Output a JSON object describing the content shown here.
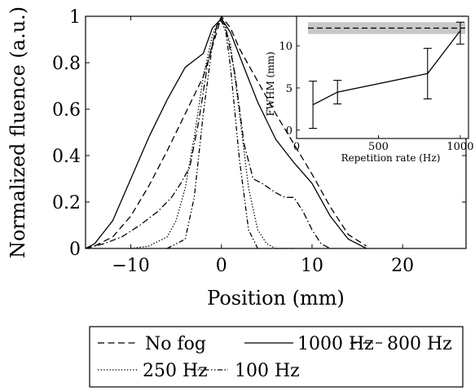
{
  "chart_data": [
    {
      "type": "line",
      "xlabel": "Position (mm)",
      "ylabel": "Normalized fluence (a.u.)",
      "xlim": [
        -15,
        27
      ],
      "ylim": [
        0,
        1
      ],
      "xticks": [
        "−10",
        "0",
        "10",
        "20"
      ],
      "yticks": [
        "0",
        "0.2",
        "0.4",
        "0.6",
        "0.8",
        "1"
      ],
      "grid": false,
      "legend": "below",
      "series": [
        {
          "name": "No fog",
          "style": "dashed",
          "x": [
            -14,
            -12,
            -10,
            -8,
            -6,
            -4,
            -2,
            -1,
            0,
            1,
            2,
            4,
            6,
            8,
            10,
            12,
            14,
            16
          ],
          "y": [
            0.01,
            0.05,
            0.14,
            0.27,
            0.42,
            0.58,
            0.74,
            0.87,
            1.0,
            0.95,
            0.86,
            0.72,
            0.58,
            0.45,
            0.32,
            0.18,
            0.06,
            0.01
          ]
        },
        {
          "name": "1000 Hz",
          "style": "solid",
          "x": [
            -15,
            -14,
            -12,
            -10,
            -8,
            -6,
            -4,
            -3,
            -2,
            -1,
            0,
            1,
            2,
            3,
            4,
            6,
            8,
            10,
            12,
            14,
            16
          ],
          "y": [
            0.0,
            0.02,
            0.12,
            0.3,
            0.48,
            0.64,
            0.78,
            0.81,
            0.84,
            0.95,
            0.99,
            0.93,
            0.83,
            0.73,
            0.63,
            0.47,
            0.37,
            0.28,
            0.14,
            0.04,
            0.0
          ]
        },
        {
          "name": "800 Hz",
          "style": "dashdot",
          "x": [
            -15,
            -13,
            -11,
            -9,
            -7,
            -5.5,
            -4.5,
            -3.5,
            -2.5,
            -1.5,
            -0.5,
            0,
            0.5,
            1.5,
            2.5,
            3.5,
            4.5,
            6,
            7,
            8,
            9,
            10,
            11,
            12
          ],
          "y": [
            0.0,
            0.02,
            0.05,
            0.1,
            0.16,
            0.22,
            0.28,
            0.35,
            0.55,
            0.8,
            0.96,
            0.99,
            0.95,
            0.75,
            0.45,
            0.3,
            0.28,
            0.24,
            0.22,
            0.22,
            0.16,
            0.08,
            0.02,
            0.0
          ]
        },
        {
          "name": "250 Hz",
          "style": "dotted",
          "x": [
            -10,
            -8,
            -6,
            -5,
            -4,
            -3,
            -2,
            -1,
            0,
            1,
            2,
            3,
            4,
            5,
            6,
            8
          ],
          "y": [
            0.0,
            0.01,
            0.05,
            0.12,
            0.26,
            0.48,
            0.74,
            0.92,
            1.0,
            0.88,
            0.58,
            0.26,
            0.08,
            0.02,
            0.0,
            0.0
          ]
        },
        {
          "name": "100 Hz",
          "style": "dashdotdot",
          "x": [
            -6,
            -4,
            -3,
            -2,
            -1,
            -0.5,
            0,
            0.5,
            1,
            2,
            3,
            4
          ],
          "y": [
            0.0,
            0.04,
            0.22,
            0.58,
            0.88,
            0.96,
            0.98,
            0.93,
            0.78,
            0.38,
            0.08,
            0.0
          ]
        }
      ]
    },
    {
      "type": "line",
      "xlabel": "Repetition rate (Hz)",
      "ylabel": "FWHM (mm)",
      "xlim": [
        0,
        1050
      ],
      "ylim": [
        -1,
        13.5
      ],
      "xticks": [
        "0",
        "500",
        "1000"
      ],
      "yticks": [
        "0",
        "5",
        "10"
      ],
      "reference": {
        "style": "dashed",
        "value": 12.1,
        "band": [
          11.4,
          12.8
        ],
        "band_color": "#c8c8c8"
      },
      "series": [
        {
          "x": [
            100,
            250,
            800,
            1000
          ],
          "y": [
            3.0,
            4.5,
            6.7,
            11.8
          ],
          "err_low": [
            2.8,
            1.4,
            3.0,
            1.6
          ],
          "err_high": [
            2.8,
            1.4,
            3.0,
            1.0
          ]
        }
      ]
    }
  ]
}
